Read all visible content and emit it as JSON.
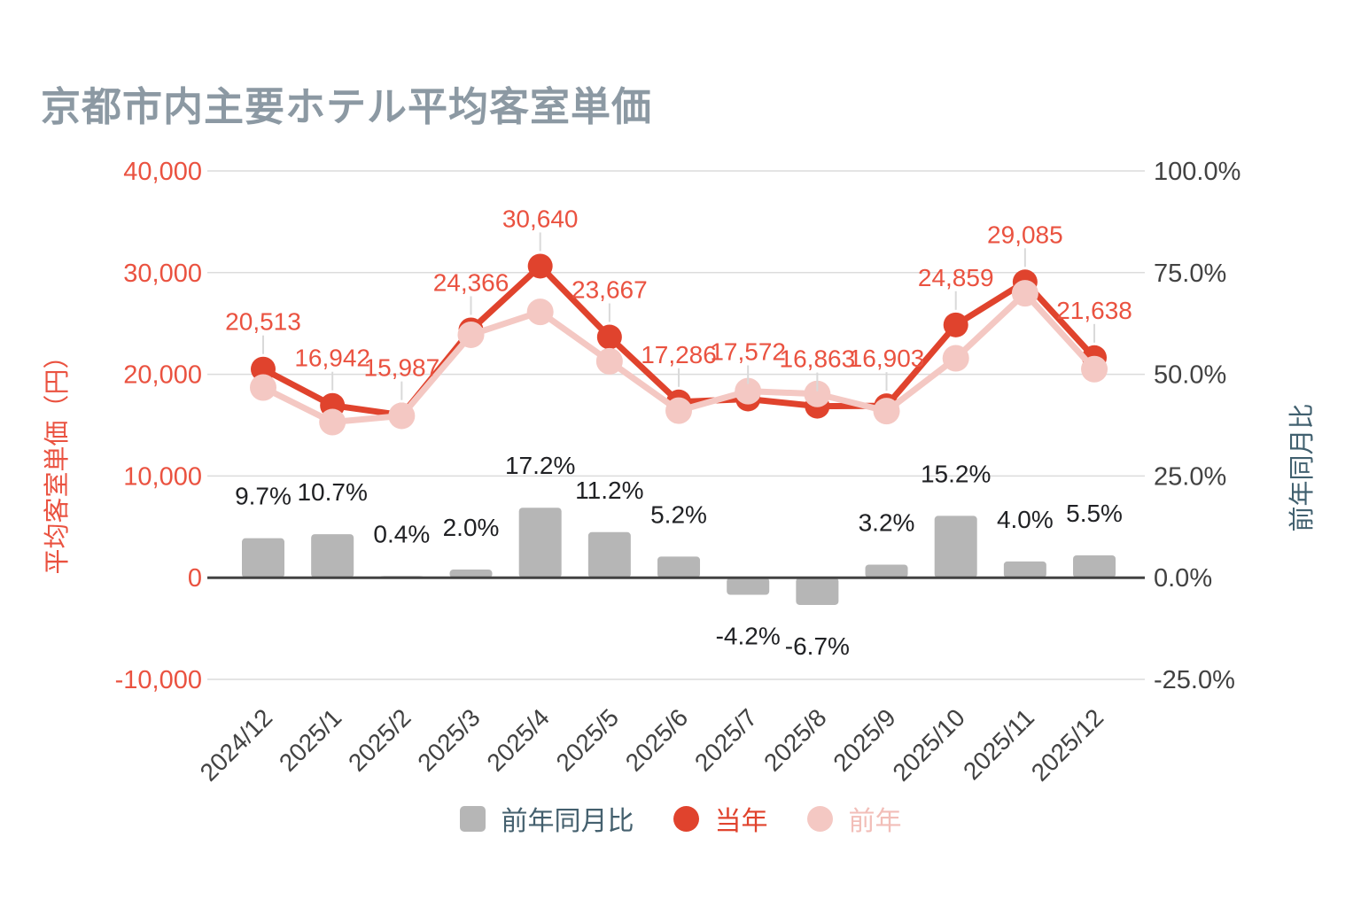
{
  "title": "京都市内主要ホテル平均客室単価",
  "colors": {
    "title": "#8c99a3",
    "current_line": "#e0432d",
    "previous_line": "#f4c8c3",
    "bar": "#b6b6b6",
    "red_text": "#ea5240",
    "pink_text": "#f2beb8",
    "dark_text": "#424242",
    "bar_label": "#202124",
    "legend_text": "#44606e",
    "grid": "#dcdcdc",
    "zero_line": "#424242",
    "leader": "#d9d9d9",
    "background": "#ffffff"
  },
  "left_axis": {
    "title": "平均客室単価（円）",
    "tick_labels": [
      "40,000",
      "30,000",
      "20,000",
      "10,000",
      "0",
      "-10,000"
    ],
    "tick_values": [
      40000,
      30000,
      20000,
      10000,
      0,
      -10000
    ],
    "min": -10000,
    "max": 40000
  },
  "right_axis": {
    "title": "前年同月比",
    "tick_labels": [
      "100.0%",
      "75.0%",
      "50.0%",
      "25.0%",
      "0.0%",
      "-25.0%"
    ],
    "tick_values": [
      100,
      75,
      50,
      25,
      0,
      -25
    ],
    "min": -25,
    "max": 100
  },
  "legend": {
    "items": [
      {
        "label": "前年同月比",
        "shape": "square",
        "color": "#b6b6b6"
      },
      {
        "label": "当年",
        "shape": "circle",
        "color": "#e0432d"
      },
      {
        "label": "前年",
        "shape": "circle",
        "color": "#f4c8c3"
      }
    ]
  },
  "chart_data": {
    "type": "combo",
    "title": "京都市内主要ホテル平均客室単価",
    "xlabel": "",
    "ylabel": "平均客室単価（円）",
    "y2label": "前年同月比",
    "ylim": [
      -10000,
      40000
    ],
    "y2lim": [
      -25,
      100
    ],
    "grid": true,
    "legend_position": "bottom",
    "categories": [
      "2024/12",
      "2025/1",
      "2025/2",
      "2025/3",
      "2025/4",
      "2025/5",
      "2025/6",
      "2025/7",
      "2025/8",
      "2025/9",
      "2025/10",
      "2025/11",
      "2025/12"
    ],
    "series": [
      {
        "name": "前年同月比",
        "type": "bar",
        "axis": "right",
        "color": "#b6b6b6",
        "values": [
          9.7,
          10.7,
          0.4,
          2.0,
          17.2,
          11.2,
          5.2,
          -4.2,
          -6.7,
          3.2,
          15.2,
          4.0,
          5.5
        ],
        "labels": [
          "9.7%",
          "10.7%",
          "0.4%",
          "2.0%",
          "17.2%",
          "11.2%",
          "5.2%",
          "-4.2%",
          "-6.7%",
          "3.2%",
          "15.2%",
          "4.0%",
          "5.5%"
        ]
      },
      {
        "name": "当年",
        "type": "line",
        "axis": "left",
        "color": "#e0432d",
        "values": [
          20513,
          16942,
          15987,
          24366,
          30640,
          23667,
          17286,
          17572,
          16863,
          16903,
          24859,
          29085,
          21638
        ],
        "labels": [
          "20,513",
          "16,942",
          "15,987",
          "24,366",
          "30,640",
          "23,667",
          "17,286",
          "17,572",
          "16,863",
          "16,903",
          "24,859",
          "29,085",
          "21,638"
        ]
      },
      {
        "name": "前年",
        "type": "line",
        "axis": "left",
        "color": "#f4c8c3",
        "estimated_from_plot": true,
        "values": [
          18700,
          15300,
          15920,
          23890,
          26140,
          21280,
          16430,
          18340,
          18070,
          16380,
          21580,
          27970,
          20510
        ],
        "labels": []
      }
    ]
  }
}
